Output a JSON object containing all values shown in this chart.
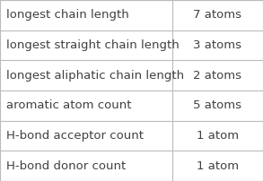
{
  "rows": [
    [
      "longest chain length",
      "7 atoms"
    ],
    [
      "longest straight chain length",
      "3 atoms"
    ],
    [
      "longest aliphatic chain length",
      "2 atoms"
    ],
    [
      "aromatic atom count",
      "5 atoms"
    ],
    [
      "H-bond acceptor count",
      "1 atom"
    ],
    [
      "H-bond donor count",
      "1 atom"
    ]
  ],
  "col_split": 0.655,
  "background_color": "#ffffff",
  "grid_color": "#bbbbbb",
  "text_color": "#404040",
  "font_size": 9.5,
  "fig_width": 2.93,
  "fig_height": 2.02,
  "dpi": 100
}
